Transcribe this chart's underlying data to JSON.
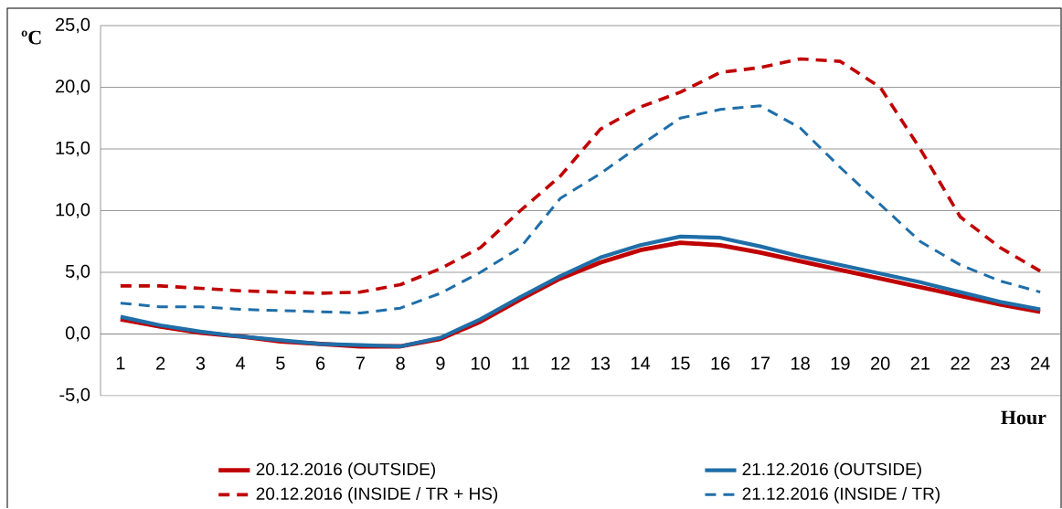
{
  "chart_data": {
    "type": "line",
    "xlabel": "Hour",
    "ylabel": "ºC",
    "categories": [
      "1",
      "2",
      "3",
      "4",
      "5",
      "6",
      "7",
      "8",
      "9",
      "10",
      "11",
      "12",
      "13",
      "14",
      "15",
      "16",
      "17",
      "18",
      "19",
      "20",
      "21",
      "22",
      "23",
      "24"
    ],
    "ylim": [
      -5,
      25
    ],
    "yticks": [
      {
        "value": -5,
        "label": "-5,0"
      },
      {
        "value": 0,
        "label": "0,0"
      },
      {
        "value": 5,
        "label": "5,0"
      },
      {
        "value": 10,
        "label": "10,0"
      },
      {
        "value": 15,
        "label": "15,0"
      },
      {
        "value": 20,
        "label": "20,0"
      },
      {
        "value": 25,
        "label": "25,0"
      }
    ],
    "grid": "y",
    "legend": "bottom",
    "marker": "none",
    "series": [
      {
        "name": "20.12.2016  (OUTSIDE)",
        "color": "#c00000",
        "line_style": "solid",
        "values": [
          1.2,
          0.6,
          0.1,
          -0.2,
          -0.6,
          -0.8,
          -1.0,
          -1.0,
          -0.4,
          1.0,
          2.8,
          4.5,
          5.8,
          6.8,
          7.4,
          7.2,
          6.6,
          5.9,
          5.2,
          4.5,
          3.8,
          3.1,
          2.4,
          1.8
        ]
      },
      {
        "name": "21.12.2016  (OUTSIDE)",
        "color": "#1f6ea8",
        "line_style": "solid",
        "values": [
          1.4,
          0.7,
          0.2,
          -0.2,
          -0.5,
          -0.8,
          -0.9,
          -1.0,
          -0.3,
          1.2,
          3.0,
          4.7,
          6.2,
          7.2,
          7.9,
          7.8,
          7.1,
          6.3,
          5.6,
          4.9,
          4.2,
          3.4,
          2.6,
          2.0
        ]
      },
      {
        "name": "20.12.2016  (INSIDE / TR + HS)",
        "color": "#c00000",
        "line_style": "dashed",
        "values": [
          3.9,
          3.9,
          3.7,
          3.5,
          3.4,
          3.3,
          3.4,
          4.0,
          5.3,
          7.0,
          10.0,
          12.8,
          16.6,
          18.4,
          19.6,
          21.2,
          21.6,
          22.3,
          22.1,
          20.0,
          15.0,
          9.5,
          7.0,
          5.1
        ]
      },
      {
        "name": "21.12.2016  (INSIDE / TR)",
        "color": "#1f6ea8",
        "line_style": "dashed",
        "values": [
          2.5,
          2.2,
          2.2,
          2.0,
          1.9,
          1.8,
          1.7,
          2.1,
          3.3,
          5.0,
          7.0,
          11.0,
          13.0,
          15.3,
          17.5,
          18.2,
          18.5,
          16.7,
          13.5,
          10.5,
          7.5,
          5.6,
          4.3,
          3.4
        ]
      }
    ]
  }
}
